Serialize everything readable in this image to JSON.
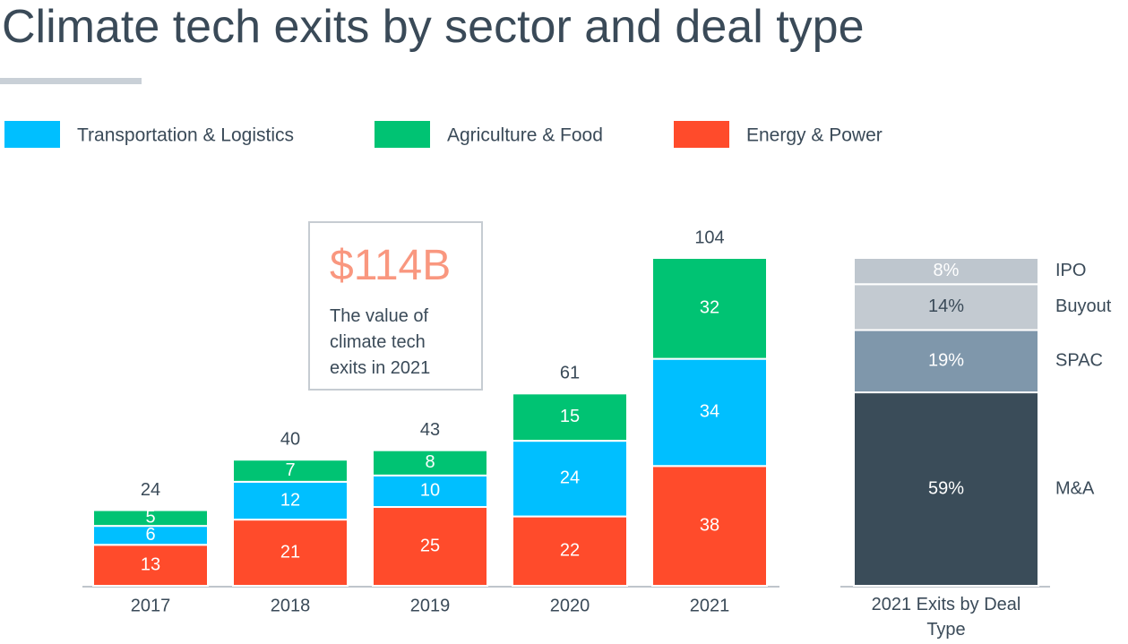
{
  "chart_data": [
    {
      "type": "bar",
      "stacked": true,
      "title": "Climate tech exits by sector and deal type",
      "categories": [
        "2017",
        "2018",
        "2019",
        "2020",
        "2021"
      ],
      "series": [
        {
          "name": "Energy & Power",
          "color": "#ff4b2b",
          "values": [
            13,
            21,
            25,
            22,
            38
          ]
        },
        {
          "name": "Transportation & Logistics",
          "color": "#00bfff",
          "values": [
            6,
            12,
            10,
            24,
            34
          ]
        },
        {
          "name": "Agriculture & Food",
          "color": "#00c373",
          "values": [
            5,
            7,
            8,
            15,
            32
          ]
        }
      ],
      "totals": [
        24,
        40,
        43,
        61,
        104
      ],
      "legend": "top",
      "annotation": {
        "value_text": "$114B",
        "text": "The value of climate tech exits in 2021"
      }
    },
    {
      "type": "bar",
      "stacked": true,
      "categories": [
        "2021 Exits by Deal Type"
      ],
      "series": [
        {
          "name": "M&A",
          "color": "#3a4c59",
          "values": [
            59
          ],
          "value_labels": [
            "59%"
          ]
        },
        {
          "name": "SPAC",
          "color": "#7f97ab",
          "values": [
            19
          ],
          "value_labels": [
            "19%"
          ]
        },
        {
          "name": "Buyout",
          "color": "#c3cad1",
          "values": [
            14
          ],
          "value_labels": [
            "14%"
          ]
        },
        {
          "name": "IPO",
          "color": "#bec6ce",
          "values": [
            8
          ],
          "value_labels": [
            "8%"
          ]
        }
      ]
    }
  ]
}
